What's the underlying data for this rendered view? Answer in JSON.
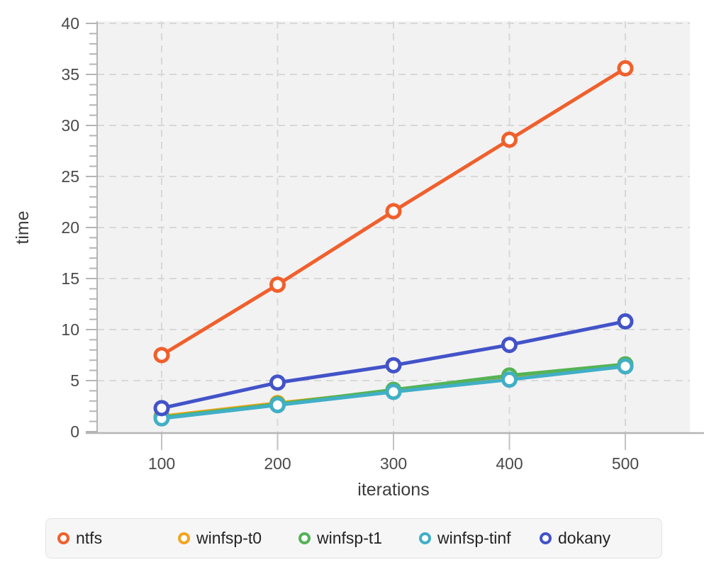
{
  "chart_data": {
    "type": "line",
    "title": "",
    "xlabel": "iterations",
    "ylabel": "time",
    "x": [
      100,
      200,
      300,
      400,
      500
    ],
    "xticks": [
      100,
      200,
      300,
      400,
      500
    ],
    "yticks": [
      0,
      5,
      10,
      15,
      20,
      25,
      30,
      35,
      40
    ],
    "y_minor_tick_step": 1,
    "ylim": [
      0,
      40
    ],
    "xlim": [
      44,
      556
    ],
    "grid": "dashed",
    "legend_position": "bottom",
    "series": [
      {
        "name": "ntfs",
        "color": "#F0602C",
        "values": [
          7.5,
          14.4,
          21.6,
          28.6,
          35.6
        ]
      },
      {
        "name": "winfsp-t0",
        "color": "#F2A51F",
        "values": [
          1.5,
          2.8,
          4.0,
          5.2,
          6.4
        ]
      },
      {
        "name": "winfsp-t1",
        "color": "#55B355",
        "values": [
          1.4,
          2.7,
          4.1,
          5.5,
          6.6
        ]
      },
      {
        "name": "winfsp-tinf",
        "color": "#41AFC6",
        "values": [
          1.3,
          2.6,
          3.9,
          5.1,
          6.4
        ]
      },
      {
        "name": "dokany",
        "color": "#4353C8",
        "values": [
          2.3,
          4.8,
          6.5,
          8.5,
          10.8
        ]
      }
    ],
    "colors": {
      "plot_bg": "#F2F2F3",
      "gridline": "#D8D8D8",
      "axis": "#B5B5B5",
      "x_tick": "#C2C2C2",
      "tick_label": "#4A4A4A",
      "axis_label": "#3C3C3C",
      "legend_bg": "#F6F6F7",
      "legend_border": "#E3E3E3",
      "legend_text": "#242424",
      "marker_fill": "#FFFFFF"
    }
  }
}
